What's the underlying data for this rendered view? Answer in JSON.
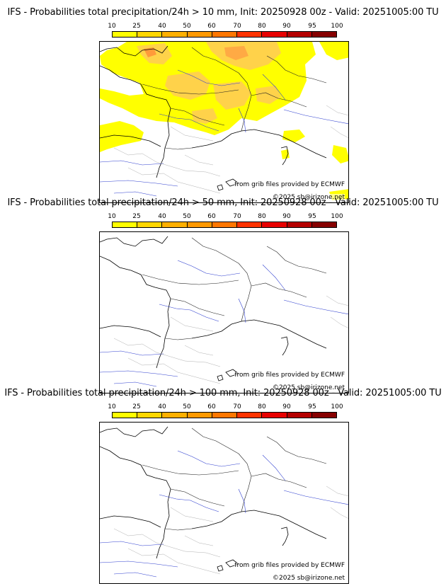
{
  "colorbar": {
    "ticks": [
      "10",
      "25",
      "40",
      "50",
      "60",
      "70",
      "80",
      "90",
      "95",
      "100"
    ],
    "colors": [
      "#ffff00",
      "#ffd700",
      "#ffb000",
      "#ff9900",
      "#ff7700",
      "#ff3300",
      "#e80000",
      "#b50000",
      "#860000",
      "#560000"
    ]
  },
  "panels": [
    {
      "title": "IFS - Probabilities total precipitation/24h > 10 mm, Init: 20250928 00z - Valid: 20251005:00 TU",
      "source": "from grib files provided by ECMWF",
      "copyright": "©2025 sb@irizone.net"
    },
    {
      "title": "IFS - Probabilities total precipitation/24h > 50 mm, Init: 20250928 00z - Valid: 20251005:00 TU",
      "source": "from grib files provided by ECMWF",
      "copyright": "©2025 sb@irizone.net"
    },
    {
      "title": "IFS - Probabilities total precipitation/24h > 100 mm, Init: 20250928 00z - Valid: 20251005:00 TU",
      "source": "from grib files provided by ECMWF",
      "copyright": "©2025 sb@irizone.net"
    }
  ]
}
